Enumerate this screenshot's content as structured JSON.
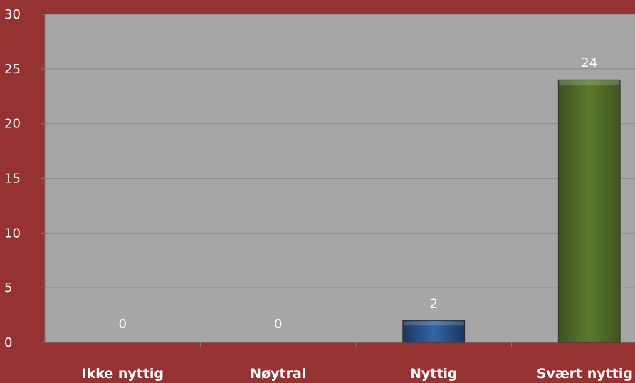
{
  "chart_data": {
    "type": "bar",
    "categories": [
      "Ikke nyttig",
      "Nøytral",
      "Nyttig",
      "Svært nyttig"
    ],
    "values": [
      0,
      0,
      2,
      24
    ],
    "data_labels": [
      "0",
      "0",
      "2",
      "24"
    ],
    "bar_colors": [
      "#1f3e6e",
      "#1f3e6e",
      "#2f5a94",
      "#4e6a28"
    ],
    "ylim": [
      0,
      30
    ],
    "yticks": [
      0,
      5,
      10,
      15,
      20,
      25,
      30
    ],
    "grid": true,
    "legend": "none",
    "title": "",
    "xlabel": "",
    "ylabel": ""
  },
  "colors": {
    "background": "#953332",
    "plot_area": "#a6a6a6",
    "gridline": "#8c8c8c",
    "text": "#ffffff"
  }
}
